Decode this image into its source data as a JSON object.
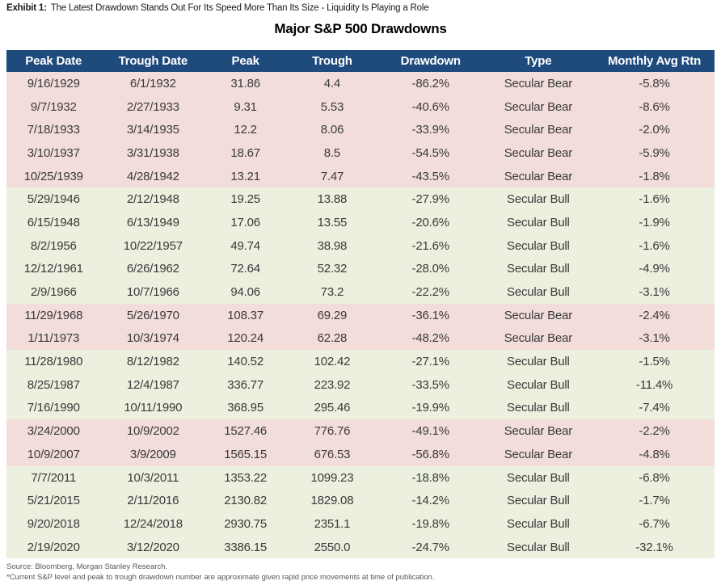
{
  "exhibit": {
    "label": "Exhibit 1:",
    "title": "The Latest Drawdown Stands Out For Its Speed More Than Its Size - Liquidity Is Playing a Role"
  },
  "chart_data": {
    "type": "table",
    "title": "Major S&P 500 Drawdowns",
    "columns": [
      "Peak Date",
      "Trough Date",
      "Peak",
      "Trough",
      "Drawdown",
      "Type",
      "Monthly Avg Rtn"
    ],
    "rows": [
      {
        "band": "bear",
        "cells": [
          "9/16/1929",
          "6/1/1932",
          "31.86",
          "4.4",
          "-86.2%",
          "Secular Bear",
          "-5.8%"
        ]
      },
      {
        "band": "bear",
        "cells": [
          "9/7/1932",
          "2/27/1933",
          "9.31",
          "5.53",
          "-40.6%",
          "Secular Bear",
          "-8.6%"
        ]
      },
      {
        "band": "bear",
        "cells": [
          "7/18/1933",
          "3/14/1935",
          "12.2",
          "8.06",
          "-33.9%",
          "Secular Bear",
          "-2.0%"
        ]
      },
      {
        "band": "bear",
        "cells": [
          "3/10/1937",
          "3/31/1938",
          "18.67",
          "8.5",
          "-54.5%",
          "Secular Bear",
          "-5.9%"
        ]
      },
      {
        "band": "bear",
        "cells": [
          "10/25/1939",
          "4/28/1942",
          "13.21",
          "7.47",
          "-43.5%",
          "Secular Bear",
          "-1.8%"
        ]
      },
      {
        "band": "bull",
        "cells": [
          "5/29/1946",
          "2/12/1948",
          "19.25",
          "13.88",
          "-27.9%",
          "Secular Bull",
          "-1.6%"
        ]
      },
      {
        "band": "bull",
        "cells": [
          "6/15/1948",
          "6/13/1949",
          "17.06",
          "13.55",
          "-20.6%",
          "Secular Bull",
          "-1.9%"
        ]
      },
      {
        "band": "bull",
        "cells": [
          "8/2/1956",
          "10/22/1957",
          "49.74",
          "38.98",
          "-21.6%",
          "Secular Bull",
          "-1.6%"
        ]
      },
      {
        "band": "bull",
        "cells": [
          "12/12/1961",
          "6/26/1962",
          "72.64",
          "52.32",
          "-28.0%",
          "Secular Bull",
          "-4.9%"
        ]
      },
      {
        "band": "bull",
        "cells": [
          "2/9/1966",
          "10/7/1966",
          "94.06",
          "73.2",
          "-22.2%",
          "Secular Bull",
          "-3.1%"
        ]
      },
      {
        "band": "bear",
        "cells": [
          "11/29/1968",
          "5/26/1970",
          "108.37",
          "69.29",
          "-36.1%",
          "Secular Bear",
          "-2.4%"
        ]
      },
      {
        "band": "bear",
        "cells": [
          "1/11/1973",
          "10/3/1974",
          "120.24",
          "62.28",
          "-48.2%",
          "Secular Bear",
          "-3.1%"
        ]
      },
      {
        "band": "bull",
        "cells": [
          "11/28/1980",
          "8/12/1982",
          "140.52",
          "102.42",
          "-27.1%",
          "Secular Bull",
          "-1.5%"
        ]
      },
      {
        "band": "bull",
        "cells": [
          "8/25/1987",
          "12/4/1987",
          "336.77",
          "223.92",
          "-33.5%",
          "Secular Bull",
          "-11.4%"
        ]
      },
      {
        "band": "bull",
        "cells": [
          "7/16/1990",
          "10/11/1990",
          "368.95",
          "295.46",
          "-19.9%",
          "Secular Bull",
          "-7.4%"
        ]
      },
      {
        "band": "bear",
        "cells": [
          "3/24/2000",
          "10/9/2002",
          "1527.46",
          "776.76",
          "-49.1%",
          "Secular Bear",
          "-2.2%"
        ]
      },
      {
        "band": "bear",
        "cells": [
          "10/9/2007",
          "3/9/2009",
          "1565.15",
          "676.53",
          "-56.8%",
          "Secular Bear",
          "-4.8%"
        ]
      },
      {
        "band": "bull",
        "cells": [
          "7/7/2011",
          "10/3/2011",
          "1353.22",
          "1099.23",
          "-18.8%",
          "Secular Bull",
          "-6.8%"
        ]
      },
      {
        "band": "bull",
        "cells": [
          "5/21/2015",
          "2/11/2016",
          "2130.82",
          "1829.08",
          "-14.2%",
          "Secular Bull",
          "-1.7%"
        ]
      },
      {
        "band": "bull",
        "cells": [
          "9/20/2018",
          "12/24/2018",
          "2930.75",
          "2351.1",
          "-19.8%",
          "Secular Bull",
          "-6.7%"
        ]
      },
      {
        "band": "bull",
        "cells": [
          "2/19/2020",
          "3/12/2020",
          "3386.15",
          "2550.0",
          "-24.7%",
          "Secular Bull",
          "-32.1%"
        ]
      }
    ],
    "column_widths_pct": [
      13.3,
      14.8,
      11.3,
      13.2,
      14.6,
      15.8,
      17.0
    ]
  },
  "colors": {
    "header_bg": "#1F4A7C",
    "header_text": "#FFFFFF",
    "bear_row_bg": "#F2DDDB",
    "bull_row_bg": "#EBF1DE",
    "cell_text": "#3A3A3A"
  },
  "footer": {
    "source": "Source: Bloomberg, Morgan Stanley Research.",
    "note": "*Current S&P level and peak to trough drawdown number are approximate given rapid price movements at time of publication."
  }
}
